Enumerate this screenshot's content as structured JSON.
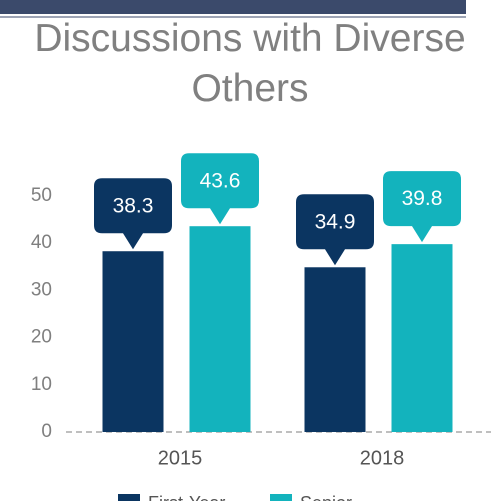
{
  "chart_data": {
    "type": "bar",
    "title": "Discussions with Diverse Others",
    "categories": [
      "2015",
      "2018"
    ],
    "series": [
      {
        "name": "First-Year",
        "color": "#0b3561",
        "values": [
          38.3,
          34.9
        ]
      },
      {
        "name": "Senior",
        "color": "#13b3bd",
        "values": [
          43.6,
          39.8
        ]
      }
    ],
    "ylim": [
      0,
      50
    ],
    "yticks": [
      0,
      10,
      20,
      30,
      40,
      50
    ],
    "legend": "bottom"
  }
}
